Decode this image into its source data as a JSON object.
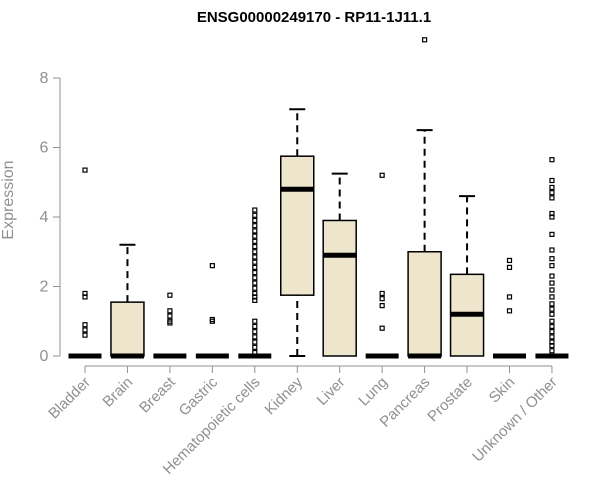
{
  "chart_data": {
    "type": "box",
    "title": "ENSG00000249170 - RP11-1J11.1",
    "xlabel": "",
    "ylabel": "Expression",
    "ylim": [
      0,
      9
    ],
    "yticks": [
      0,
      2,
      4,
      6,
      8
    ],
    "colors": {
      "box_fill": "#ede6cd",
      "box_edge": "#000000",
      "axis": "#909090"
    },
    "categories": [
      "Bladder",
      "Brain",
      "Breast",
      "Gastric",
      "Hematopoietic cells",
      "Kidney",
      "Liver",
      "Lung",
      "Pancreas",
      "Prostate",
      "Skin",
      "Unknown / Other"
    ],
    "boxes": [
      {
        "q1": 0,
        "median": 0,
        "q3": 0,
        "whisker_low": 0,
        "whisker_high": 0,
        "outliers": [
          5.35,
          1.8,
          1.7,
          0.9,
          0.75,
          0.6
        ]
      },
      {
        "q1": 0,
        "median": 0,
        "q3": 1.55,
        "whisker_low": 0,
        "whisker_high": 3.2,
        "outliers": []
      },
      {
        "q1": 0,
        "median": 0,
        "q3": 0,
        "whisker_low": 0,
        "whisker_high": 0,
        "outliers": [
          1.75,
          1.3,
          1.15,
          1.0,
          0.95
        ]
      },
      {
        "q1": 0,
        "median": 0,
        "q3": 0,
        "whisker_low": 0,
        "whisker_high": 0,
        "outliers": [
          2.6,
          1.05,
          1.0
        ]
      },
      {
        "q1": 0,
        "median": 0,
        "q3": 0,
        "whisker_low": 0,
        "whisker_high": 0,
        "outliers": [
          4.2,
          4.05,
          3.9,
          3.75,
          3.6,
          3.45,
          3.3,
          3.15,
          3.0,
          2.85,
          2.7,
          2.55,
          2.4,
          2.25,
          2.1,
          1.95,
          1.8,
          1.7,
          1.6,
          1.0,
          0.85,
          0.7,
          0.55,
          0.4,
          0.25,
          0.1
        ]
      },
      {
        "q1": 1.75,
        "median": 4.8,
        "q3": 5.75,
        "whisker_low": 0,
        "whisker_high": 7.1,
        "outliers": []
      },
      {
        "q1": 0,
        "median": 2.9,
        "q3": 3.9,
        "whisker_low": 0,
        "whisker_high": 5.25,
        "outliers": []
      },
      {
        "q1": 0,
        "median": 0,
        "q3": 0,
        "whisker_low": 0,
        "whisker_high": 0,
        "outliers": [
          5.2,
          1.8,
          1.65,
          1.45,
          0.8
        ]
      },
      {
        "q1": 0,
        "median": 0,
        "q3": 3.0,
        "whisker_low": 0,
        "whisker_high": 6.5,
        "outliers": [
          9.1
        ]
      },
      {
        "q1": 0,
        "median": 1.2,
        "q3": 2.35,
        "whisker_low": 0,
        "whisker_high": 4.6,
        "outliers": []
      },
      {
        "q1": 0,
        "median": 0,
        "q3": 0,
        "whisker_low": 0,
        "whisker_high": 0,
        "outliers": [
          2.75,
          2.55,
          1.7,
          1.3
        ]
      },
      {
        "q1": 0,
        "median": 0,
        "q3": 0,
        "whisker_low": 0,
        "whisker_high": 0,
        "outliers": [
          5.65,
          5.05,
          4.85,
          4.7,
          4.55,
          4.1,
          4.0,
          3.5,
          3.05,
          2.8,
          2.6,
          2.3,
          2.1,
          1.9,
          1.7,
          1.5,
          1.35,
          1.2,
          1.0,
          0.85,
          0.7,
          0.55,
          0.4,
          0.3,
          0.15
        ]
      }
    ]
  }
}
